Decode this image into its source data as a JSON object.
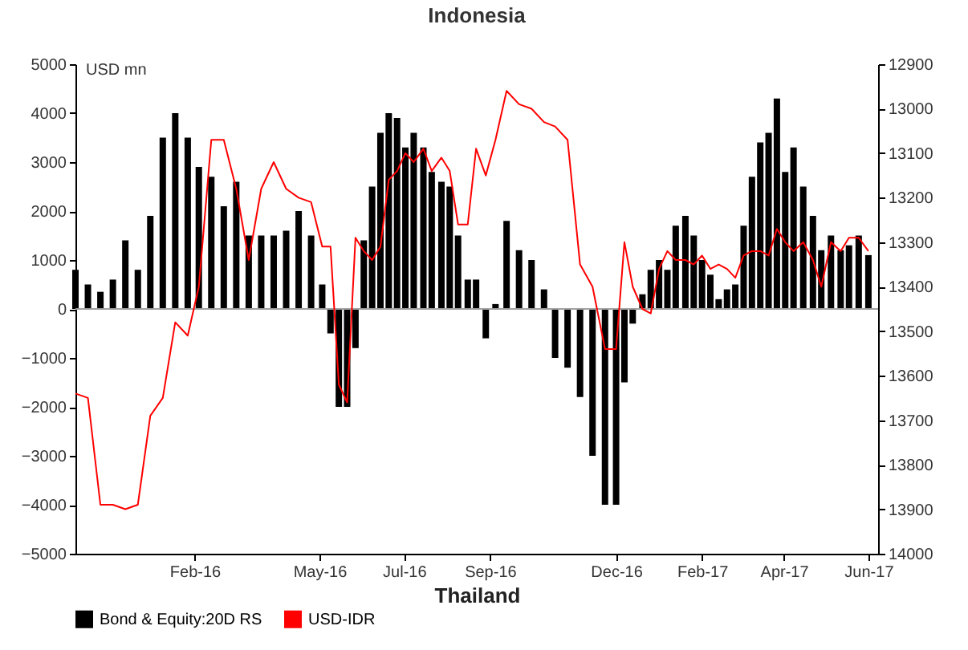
{
  "chart_data": {
    "type": "bar",
    "title": "Indonesia",
    "xlabel": "Thailand",
    "ylabel": "USD mn",
    "x": [
      "2015-11-07",
      "2015-11-16",
      "2015-11-25",
      "2015-12-04",
      "2015-12-13",
      "2015-12-22",
      "2015-12-31",
      "2016-01-09",
      "2016-01-18",
      "2016-01-27",
      "2016-02-04",
      "2016-02-13",
      "2016-02-22",
      "2016-03-02",
      "2016-03-11",
      "2016-03-20",
      "2016-03-29",
      "2016-04-07",
      "2016-04-16",
      "2016-04-25",
      "2016-05-03",
      "2016-05-09",
      "2016-05-15",
      "2016-05-21",
      "2016-05-27",
      "2016-06-02",
      "2016-06-08",
      "2016-06-14",
      "2016-06-20",
      "2016-06-26",
      "2016-07-02",
      "2016-07-08",
      "2016-07-15",
      "2016-07-21",
      "2016-07-28",
      "2016-08-03",
      "2016-08-09",
      "2016-08-16",
      "2016-08-22",
      "2016-08-29",
      "2016-09-05",
      "2016-09-13",
      "2016-09-22",
      "2016-10-01",
      "2016-10-10",
      "2016-10-18",
      "2016-10-27",
      "2016-11-05",
      "2016-11-14",
      "2016-11-23",
      "2016-12-01",
      "2016-12-07",
      "2016-12-13",
      "2016-12-20",
      "2016-12-26",
      "2017-01-01",
      "2017-01-07",
      "2017-01-13",
      "2017-01-20",
      "2017-01-26",
      "2017-02-01",
      "2017-02-07",
      "2017-02-13",
      "2017-02-19",
      "2017-02-25",
      "2017-03-03",
      "2017-03-09",
      "2017-03-15",
      "2017-03-21",
      "2017-03-27",
      "2017-04-02",
      "2017-04-08",
      "2017-04-15",
      "2017-04-22",
      "2017-04-28",
      "2017-05-05",
      "2017-05-12",
      "2017-05-18",
      "2017-05-25",
      "2017-06-01"
    ],
    "series": [
      {
        "name": "Bond & Equity:20D RS",
        "color": "#000000",
        "values": [
          800,
          500,
          350,
          600,
          1400,
          800,
          1900,
          3500,
          4000,
          3500,
          2900,
          2700,
          2100,
          2600,
          1500,
          1500,
          1500,
          1600,
          2000,
          1500,
          500,
          -500,
          -2000,
          -2000,
          -800,
          1400,
          2500,
          3600,
          4000,
          3900,
          3300,
          3600,
          3300,
          2800,
          2600,
          2500,
          1500,
          600,
          600,
          -600,
          100,
          1800,
          1200,
          1000,
          400,
          -1000,
          -1200,
          -1800,
          -3000,
          -4000,
          -4000,
          -1500,
          -300,
          300,
          800,
          1000,
          800,
          1700,
          1900,
          1500,
          1000,
          700,
          200,
          400,
          500,
          1700,
          2700,
          3400,
          3600,
          4300,
          2800,
          3300,
          2500,
          1900,
          1200,
          1500,
          1200,
          1300,
          1500,
          1100
        ]
      },
      {
        "name": "USD-IDR",
        "type": "line",
        "axis": "y2",
        "color": "#ff0000",
        "values": [
          13640,
          13650,
          13890,
          13890,
          13900,
          13890,
          13690,
          13650,
          13480,
          13510,
          13400,
          13070,
          13070,
          13180,
          13340,
          13180,
          13120,
          13180,
          13200,
          13210,
          13310,
          13310,
          13620,
          13660,
          13290,
          13320,
          13340,
          13310,
          13160,
          13140,
          13100,
          13120,
          13090,
          13140,
          13110,
          13140,
          13260,
          13260,
          13090,
          13150,
          13070,
          12960,
          12990,
          13000,
          13030,
          13040,
          13070,
          13350,
          13400,
          13540,
          13540,
          13300,
          13400,
          13450,
          13460,
          13360,
          13320,
          13340,
          13340,
          13350,
          13330,
          13360,
          13350,
          13360,
          13380,
          13330,
          13320,
          13320,
          13330,
          13270,
          13300,
          13320,
          13300,
          13340,
          13400,
          13300,
          13320,
          13290,
          13290,
          13320
        ]
      }
    ],
    "xlim": [
      "2015-11-07",
      "2017-06-08"
    ],
    "xticks": [
      {
        "value": "2016-02-01",
        "label": "Feb-16"
      },
      {
        "value": "2016-05-01",
        "label": "May-16"
      },
      {
        "value": "2016-07-01",
        "label": "Jul-16"
      },
      {
        "value": "2016-09-01",
        "label": "Sep-16"
      },
      {
        "value": "2016-12-01",
        "label": "Dec-16"
      },
      {
        "value": "2017-02-01",
        "label": "Feb-17"
      },
      {
        "value": "2017-04-01",
        "label": "Apr-17"
      },
      {
        "value": "2017-06-01",
        "label": "Jun-17"
      }
    ],
    "ylim": [
      -5000,
      5000
    ],
    "yticks": [
      -5000,
      -4000,
      -3000,
      -2000,
      -1000,
      0,
      1000,
      2000,
      3000,
      4000,
      5000
    ],
    "y2lim": [
      14000,
      12900
    ],
    "y2ticks": [
      12900,
      13000,
      13100,
      13200,
      13300,
      13400,
      13500,
      13600,
      13700,
      13800,
      13900,
      14000
    ],
    "ref_lines": [
      {
        "axis": "y",
        "value": 0,
        "color": "#a0a0a0"
      }
    ],
    "legend": "bottom"
  }
}
